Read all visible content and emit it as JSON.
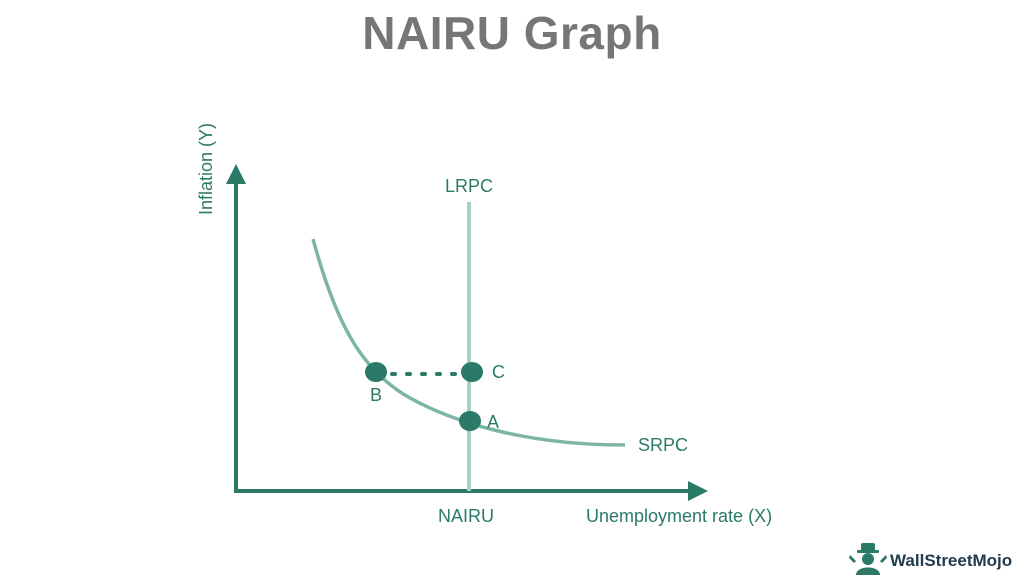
{
  "title": "NAIRU Graph",
  "axes": {
    "y_label": "Inflation (Y)",
    "x_label": "Unemployment rate (X)"
  },
  "curves": {
    "lrpc_label": "LRPC",
    "srpc_label": "SRPC",
    "nairu_label": "NAIRU"
  },
  "points": [
    {
      "id": "A",
      "label": "A"
    },
    {
      "id": "B",
      "label": "B"
    },
    {
      "id": "C",
      "label": "C"
    }
  ],
  "brand": {
    "name": "WallStreetMojo",
    "icon": "wallstreetmojo-logo-icon"
  },
  "colors": {
    "title": "#767676",
    "axis": "#2b7a68",
    "curve": "#7cb5a5",
    "lrpc": "#a9cfc4",
    "point": "#2b7a68"
  }
}
